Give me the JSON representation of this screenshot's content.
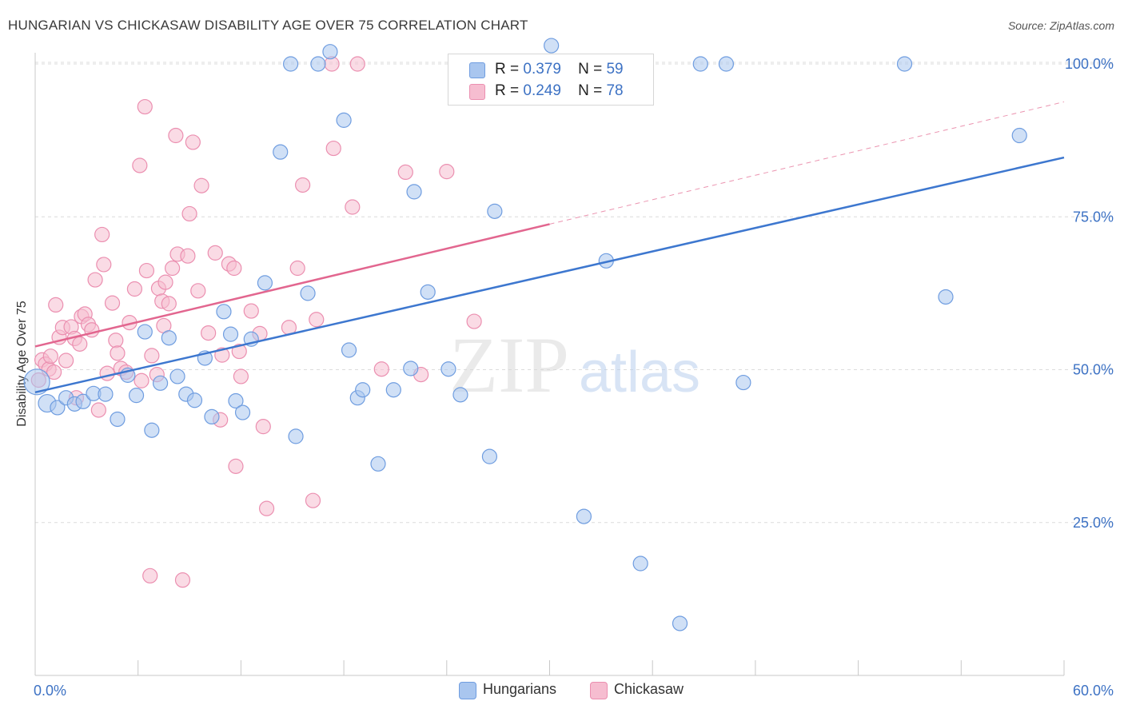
{
  "title": "HUNGARIAN VS CHICKASAW DISABILITY AGE OVER 75 CORRELATION CHART",
  "source": "Source: ZipAtlas.com",
  "watermark": {
    "zip": "ZIP",
    "atlas": "atlas"
  },
  "legend_top": [
    {
      "r_label": "R =",
      "r_value": "0.379",
      "n_label": "N =",
      "n_value": "59"
    },
    {
      "r_label": "R =",
      "r_value": "0.249",
      "n_label": "N =",
      "n_value": "78"
    }
  ],
  "colors": {
    "hungarians_fill": "#a9c6ef",
    "hungarians_stroke": "#6f9de0",
    "hungarians_line": "#3d77cf",
    "chickasaw_fill": "#f6bdd0",
    "chickasaw_stroke": "#eb8fb0",
    "chickasaw_line": "#e2668f",
    "tick_label": "#3d72c4",
    "grid": "#dcdcdc"
  },
  "chart_data": {
    "type": "scatter",
    "title": "HUNGARIAN VS CHICKASAW DISABILITY AGE OVER 75 CORRELATION CHART",
    "xlabel": "",
    "ylabel": "Disability Age Over 75",
    "xlim": [
      0,
      60
    ],
    "ylim": [
      0,
      105
    ],
    "x_ticks": [
      0,
      6,
      12,
      18,
      24,
      30,
      36,
      42,
      48,
      54,
      60
    ],
    "x_tick_labels": [
      {
        "value": 0,
        "label": "0.0%"
      },
      {
        "value": 60,
        "label": "60.0%"
      }
    ],
    "y_ticks": [
      {
        "value": 25,
        "label": "25.0%"
      },
      {
        "value": 50,
        "label": "50.0%"
      },
      {
        "value": 75,
        "label": "75.0%"
      },
      {
        "value": 100,
        "label": "100.0%"
      }
    ],
    "grid": true,
    "legend_position": "bottom-center",
    "series": [
      {
        "name": "Hungarians",
        "r": 0.379,
        "n": 59,
        "trend": {
          "x0": 0,
          "y0": 46.3,
          "x1": 60,
          "y1": 84.7,
          "dashed_from": null
        },
        "points": [
          [
            0.1,
            48.0,
            16
          ],
          [
            0.7,
            44.5,
            11
          ],
          [
            1.3,
            43.8,
            9
          ],
          [
            1.8,
            45.4,
            9
          ],
          [
            2.3,
            44.4,
            9
          ],
          [
            2.8,
            44.8,
            9
          ],
          [
            3.4,
            46.1,
            9
          ],
          [
            4.1,
            46.0,
            9
          ],
          [
            4.8,
            41.9,
            9
          ],
          [
            5.4,
            49.1,
            9
          ],
          [
            5.9,
            45.8,
            9
          ],
          [
            6.4,
            56.2,
            9
          ],
          [
            6.8,
            40.1,
            9
          ],
          [
            7.3,
            47.8,
            9
          ],
          [
            7.8,
            55.2,
            9
          ],
          [
            8.3,
            48.9,
            9
          ],
          [
            8.8,
            46.0,
            9
          ],
          [
            9.3,
            45.0,
            9
          ],
          [
            9.9,
            51.9,
            9
          ],
          [
            10.3,
            42.3,
            9
          ],
          [
            11.0,
            59.5,
            9
          ],
          [
            11.4,
            55.8,
            9
          ],
          [
            11.7,
            44.9,
            9
          ],
          [
            12.1,
            43.0,
            9
          ],
          [
            12.6,
            55.0,
            9
          ],
          [
            13.4,
            64.2,
            9
          ],
          [
            14.3,
            85.6,
            9
          ],
          [
            14.9,
            100.0,
            9
          ],
          [
            15.2,
            39.1,
            9
          ],
          [
            15.9,
            62.5,
            9
          ],
          [
            16.5,
            100.0,
            9
          ],
          [
            17.2,
            102.0,
            9
          ],
          [
            18.0,
            90.8,
            9
          ],
          [
            18.3,
            53.2,
            9
          ],
          [
            18.8,
            45.4,
            9
          ],
          [
            19.1,
            46.7,
            9
          ],
          [
            20.0,
            34.6,
            9
          ],
          [
            20.9,
            46.7,
            9
          ],
          [
            21.9,
            50.2,
            9
          ],
          [
            22.1,
            79.1,
            9
          ],
          [
            22.9,
            62.7,
            9
          ],
          [
            24.1,
            50.1,
            9
          ],
          [
            24.8,
            45.9,
            9
          ],
          [
            26.5,
            35.8,
            9
          ],
          [
            26.8,
            75.9,
            9
          ],
          [
            28.0,
            98.3,
            9
          ],
          [
            28.2,
            100.0,
            9
          ],
          [
            29.8,
            100.0,
            9
          ],
          [
            30.1,
            103.0,
            9
          ],
          [
            32.0,
            26.0,
            9
          ],
          [
            33.3,
            67.8,
            9
          ],
          [
            35.3,
            18.3,
            9
          ],
          [
            37.6,
            8.5,
            9
          ],
          [
            38.8,
            100.0,
            9
          ],
          [
            40.3,
            100.0,
            9
          ],
          [
            41.3,
            47.9,
            9
          ],
          [
            50.7,
            100.0,
            9
          ],
          [
            53.1,
            61.9,
            9
          ],
          [
            57.4,
            88.3,
            9
          ]
        ]
      },
      {
        "name": "Chickasaw",
        "r": 0.249,
        "n": 78,
        "trend": {
          "x0": 0,
          "y0": 53.8,
          "x1": 60,
          "y1": 93.8,
          "solid_until": 30
        },
        "points": [
          [
            0.2,
            48.3,
            9
          ],
          [
            0.4,
            51.6,
            9
          ],
          [
            0.6,
            50.9,
            9
          ],
          [
            0.8,
            50.1,
            9
          ],
          [
            0.9,
            52.2,
            9
          ],
          [
            1.1,
            49.6,
            9
          ],
          [
            1.2,
            60.6,
            9
          ],
          [
            1.4,
            55.3,
            9
          ],
          [
            1.6,
            56.9,
            9
          ],
          [
            1.8,
            51.5,
            9
          ],
          [
            2.1,
            57.0,
            9
          ],
          [
            2.3,
            55.1,
            9
          ],
          [
            2.4,
            45.4,
            9
          ],
          [
            2.6,
            54.2,
            9
          ],
          [
            2.7,
            58.7,
            9
          ],
          [
            2.9,
            59.1,
            9
          ],
          [
            3.1,
            57.4,
            9
          ],
          [
            3.3,
            56.5,
            9
          ],
          [
            3.5,
            64.7,
            9
          ],
          [
            3.7,
            43.4,
            9
          ],
          [
            3.9,
            72.1,
            9
          ],
          [
            4.0,
            67.2,
            9
          ],
          [
            4.2,
            49.4,
            9
          ],
          [
            4.5,
            60.9,
            9
          ],
          [
            4.7,
            54.8,
            9
          ],
          [
            4.8,
            52.7,
            9
          ],
          [
            5.0,
            50.2,
            9
          ],
          [
            5.3,
            49.6,
            9
          ],
          [
            5.5,
            57.7,
            9
          ],
          [
            5.8,
            63.2,
            9
          ],
          [
            6.1,
            83.4,
            9
          ],
          [
            6.2,
            48.2,
            9
          ],
          [
            6.4,
            93.0,
            9
          ],
          [
            6.5,
            66.2,
            9
          ],
          [
            6.7,
            16.3,
            9
          ],
          [
            6.8,
            52.3,
            9
          ],
          [
            7.1,
            49.2,
            9
          ],
          [
            7.2,
            63.3,
            9
          ],
          [
            7.4,
            61.2,
            9
          ],
          [
            7.5,
            57.2,
            9
          ],
          [
            7.6,
            64.3,
            9
          ],
          [
            7.8,
            60.8,
            9
          ],
          [
            8.0,
            66.6,
            9
          ],
          [
            8.2,
            88.3,
            9
          ],
          [
            8.3,
            68.9,
            9
          ],
          [
            8.6,
            15.6,
            9
          ],
          [
            8.9,
            68.6,
            9
          ],
          [
            9.0,
            75.5,
            9
          ],
          [
            9.2,
            87.2,
            9
          ],
          [
            9.5,
            62.9,
            9
          ],
          [
            9.7,
            80.1,
            9
          ],
          [
            10.1,
            56.0,
            9
          ],
          [
            10.5,
            69.1,
            9
          ],
          [
            10.8,
            41.8,
            9
          ],
          [
            10.9,
            52.4,
            9
          ],
          [
            11.3,
            67.3,
            9
          ],
          [
            11.6,
            66.6,
            9
          ],
          [
            11.7,
            34.2,
            9
          ],
          [
            11.9,
            53.0,
            9
          ],
          [
            12.0,
            48.9,
            9
          ],
          [
            12.6,
            59.6,
            9
          ],
          [
            13.1,
            55.9,
            9
          ],
          [
            13.3,
            40.7,
            9
          ],
          [
            13.5,
            27.3,
            9
          ],
          [
            14.8,
            56.9,
            9
          ],
          [
            15.3,
            66.6,
            9
          ],
          [
            15.6,
            80.2,
            9
          ],
          [
            16.2,
            28.6,
            9
          ],
          [
            16.4,
            58.2,
            9
          ],
          [
            17.3,
            100.0,
            9
          ],
          [
            17.4,
            86.2,
            9
          ],
          [
            18.5,
            76.6,
            9
          ],
          [
            18.8,
            100.0,
            9
          ],
          [
            20.2,
            50.1,
            9
          ],
          [
            21.6,
            82.3,
            9
          ],
          [
            22.5,
            49.2,
            9
          ],
          [
            24.0,
            82.4,
            9
          ],
          [
            25.6,
            57.9,
            9
          ]
        ]
      }
    ]
  }
}
